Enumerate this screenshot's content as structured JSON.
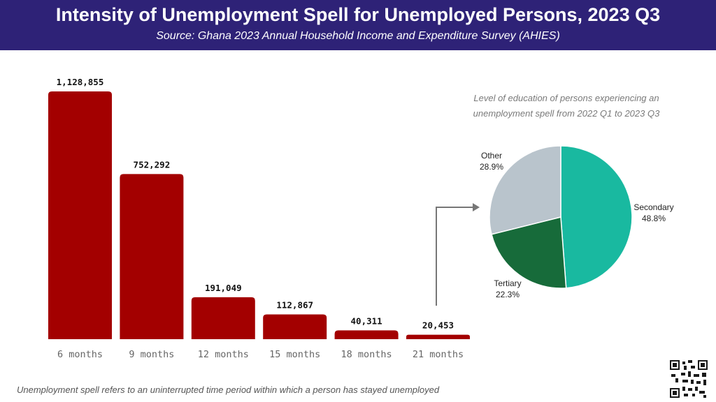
{
  "header": {
    "title": "Intensity of Unemployment Spell for Unemployed Persons, 2023 Q3",
    "subtitle": "Source: Ghana 2023 Annual Household Income and Expenditure Survey (AHIES)"
  },
  "pie_caption_line1": "Level of education of persons experiencing an",
  "pie_caption_line2": "unemployment spell from 2022 Q1 to 2023 Q3",
  "footnote": "Unemployment spell refers to an uninterrupted time period within which a person has stayed unemployed",
  "colors": {
    "header_bg": "#2e2277",
    "bar": "#a30000",
    "pie_secondary": "#19b9a0",
    "pie_tertiary": "#176b3a",
    "pie_other": "#b9c4cc",
    "arrow": "#777777"
  },
  "chart_data": [
    {
      "type": "bar",
      "categories": [
        "6 months",
        "9 months",
        "12 months",
        "15 months",
        "18 months",
        "21 months"
      ],
      "values": [
        1128855,
        752292,
        191049,
        112867,
        40311,
        20453
      ],
      "value_labels": [
        "1,128,855",
        "752,292",
        "191,049",
        "112,867",
        "40,311",
        "20,453"
      ],
      "ylim": [
        0,
        1128855
      ]
    },
    {
      "type": "pie",
      "labels": [
        "Secondary",
        "Tertiary",
        "Other"
      ],
      "values": [
        48.8,
        22.3,
        28.9
      ],
      "value_labels": [
        "48.8%",
        "22.3%",
        "28.9%"
      ]
    }
  ],
  "qr_icon": "qr-code-icon"
}
